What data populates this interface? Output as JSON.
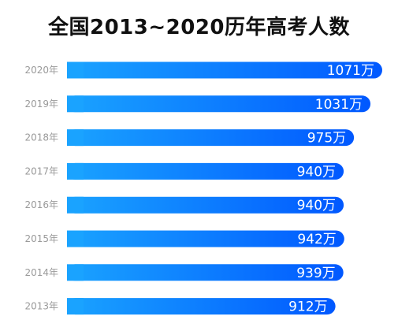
{
  "chart_data": {
    "type": "bar",
    "orientation": "horizontal",
    "title": "全国2013~2020历年高考人数",
    "categories": [
      "2020年",
      "2019年",
      "2018年",
      "2017年",
      "2016年",
      "2015年",
      "2014年",
      "2013年"
    ],
    "values": [
      1071,
      1031,
      975,
      940,
      940,
      942,
      939,
      912
    ],
    "value_labels": [
      "1071万",
      "1031万",
      "975万",
      "940万",
      "940万",
      "942万",
      "939万",
      "912万"
    ],
    "unit": "万",
    "xlabel": "",
    "ylabel": "",
    "grid": false,
    "legend": "none",
    "colors": {
      "bar_start": "#1aa3ff",
      "bar_end": "#0058ff",
      "label": "#ffffff",
      "tick": "#9a9a9a",
      "title": "#111111"
    }
  }
}
